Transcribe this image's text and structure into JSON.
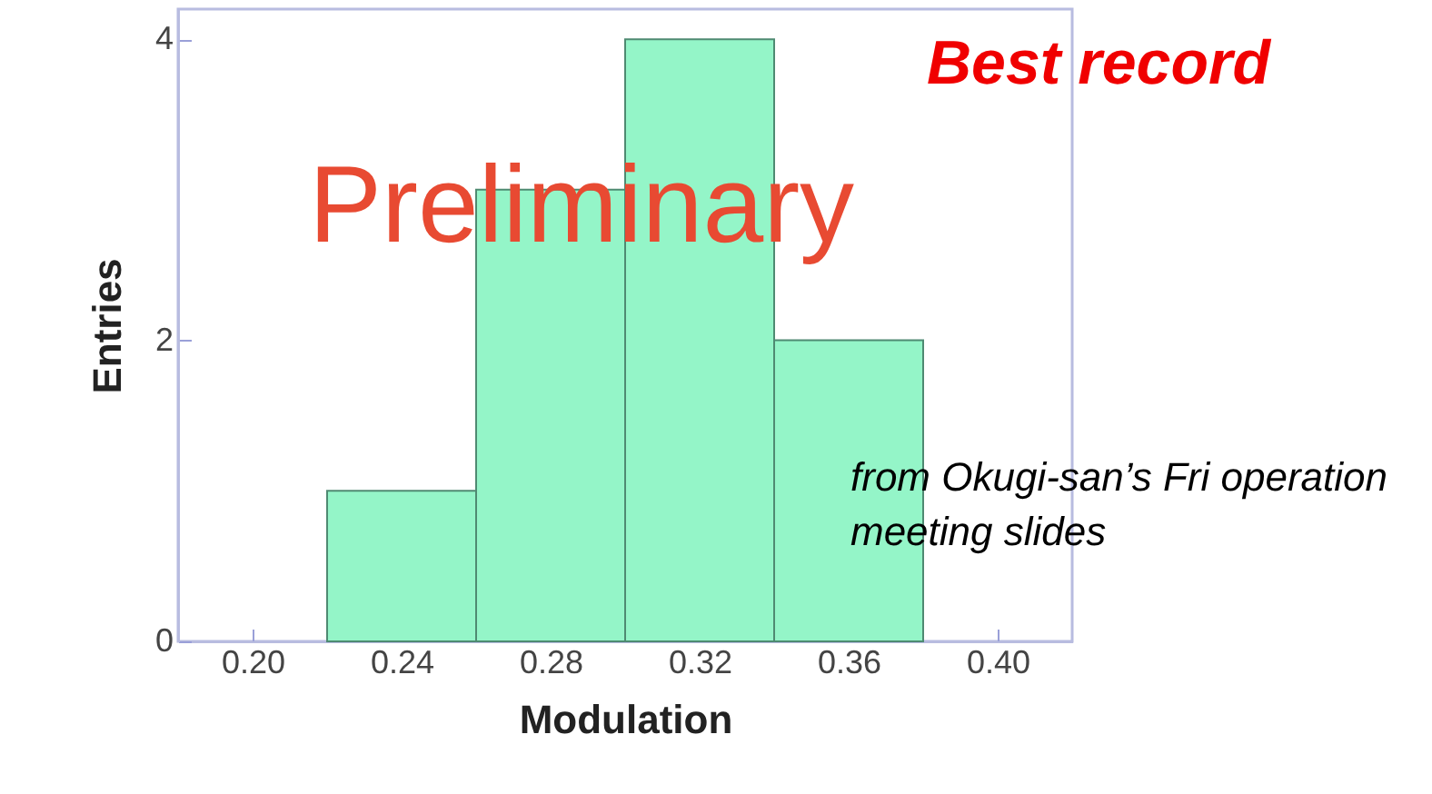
{
  "chart_data": {
    "type": "histogram",
    "xlabel": "Modulation",
    "ylabel": "Entries",
    "bins": [
      0.22,
      0.26,
      0.3,
      0.34,
      0.38
    ],
    "values": [
      1,
      3,
      4,
      2
    ],
    "color": "#94f5c8",
    "xlim": [
      0.18,
      0.42
    ],
    "ylim": [
      0,
      4.2
    ],
    "xticks": [
      {
        "value": 0.2,
        "label": "0.20"
      },
      {
        "value": 0.24,
        "label": "0.24"
      },
      {
        "value": 0.28,
        "label": "0.28"
      },
      {
        "value": 0.32,
        "label": "0.32"
      },
      {
        "value": 0.36,
        "label": "0.36"
      },
      {
        "value": 0.4,
        "label": "0.40"
      }
    ],
    "yticks": [
      0,
      2,
      4
    ],
    "grid": false,
    "annotations": [
      "Best record",
      "Preliminary",
      "from Okugi-san’s Fri operation meeting slides"
    ]
  }
}
